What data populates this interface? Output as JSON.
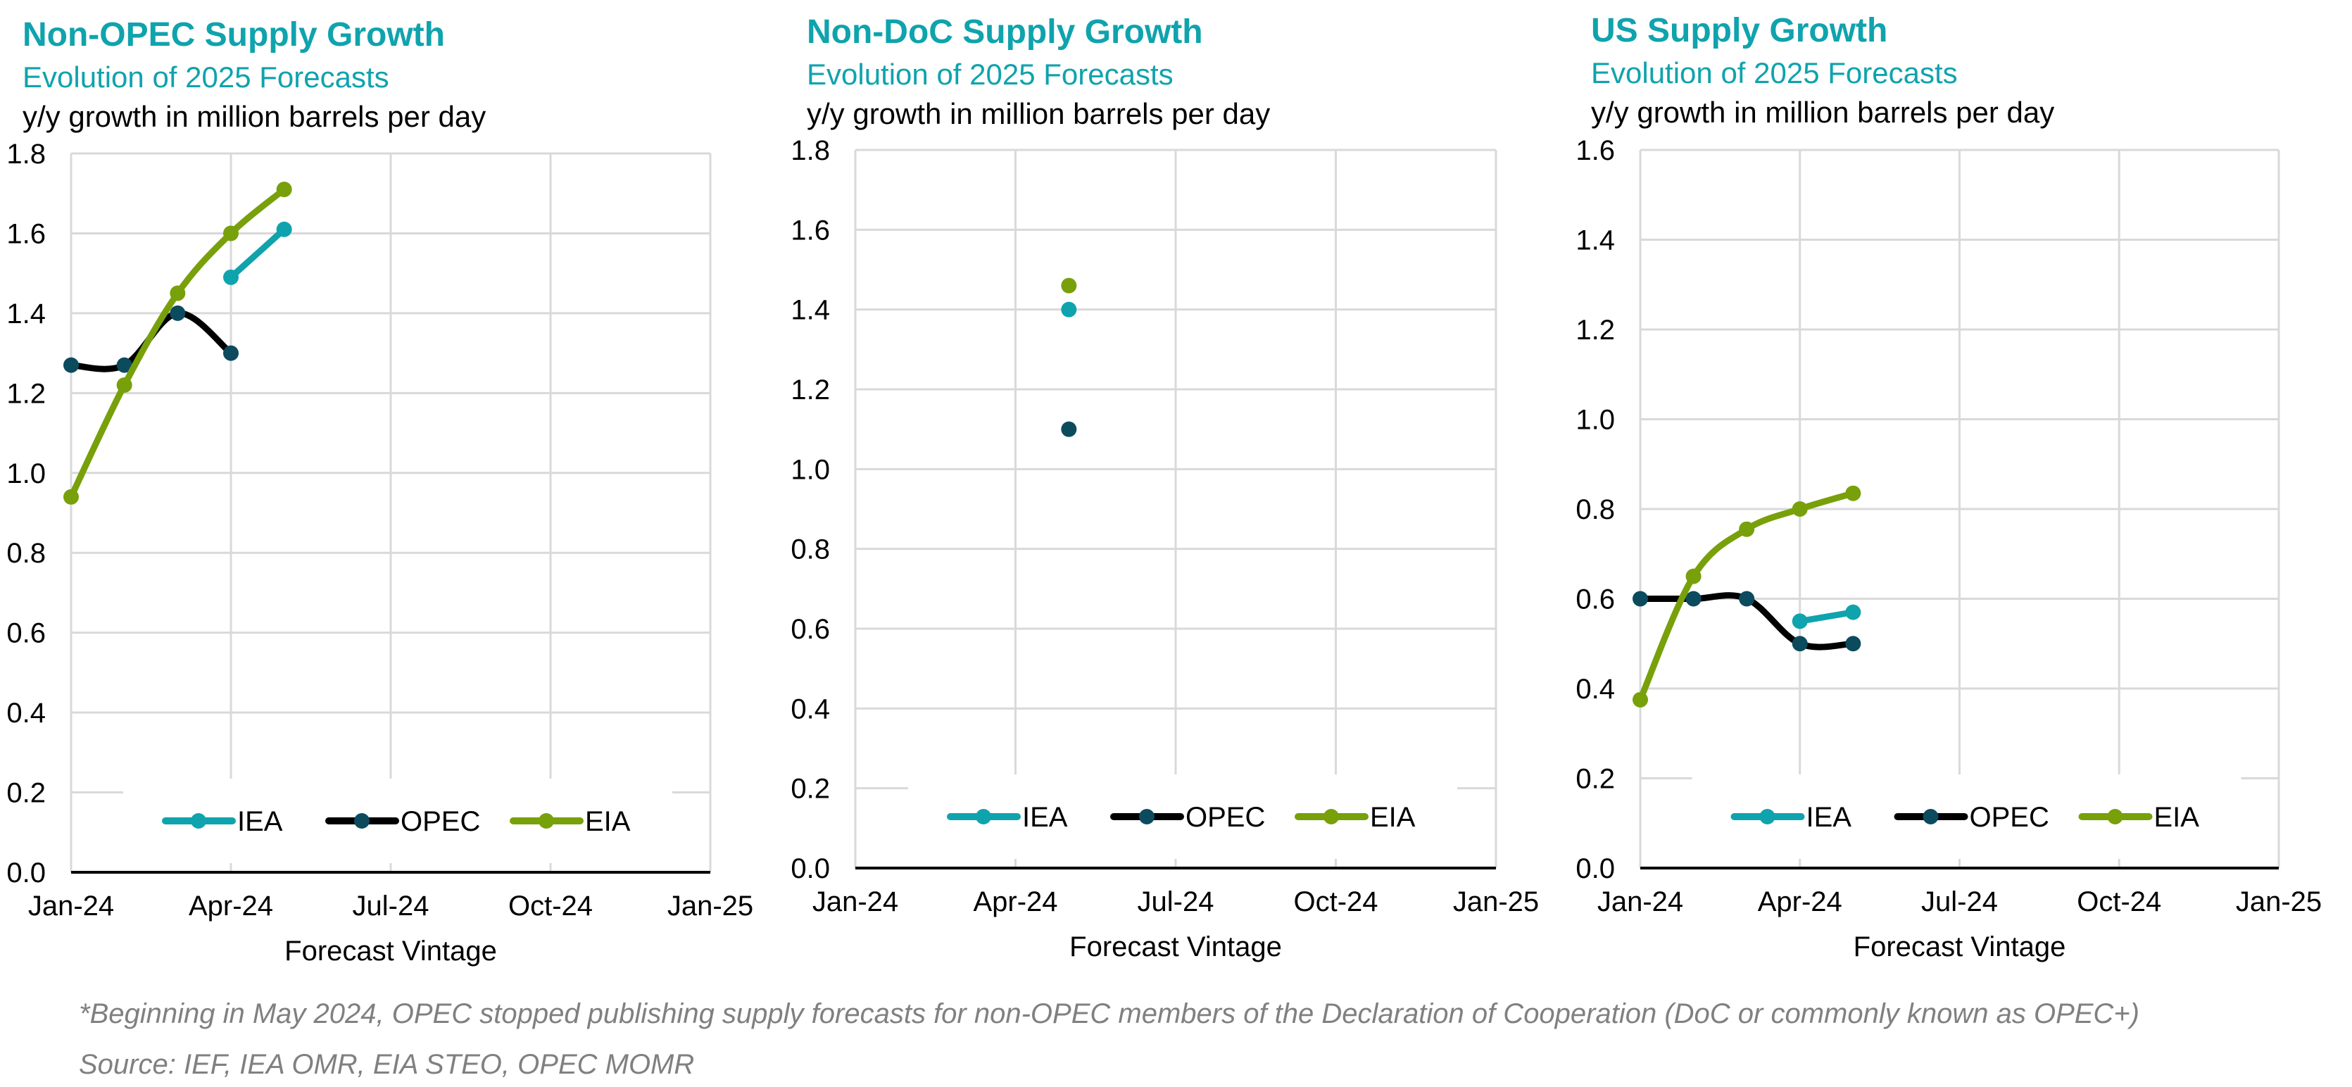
{
  "footnote": "*Beginning in May 2024, OPEC stopped publishing supply forecasts for non-OPEC members of the Declaration of Cooperation (DoC or commonly known as OPEC+)",
  "source": "Source: IEF, IEA OMR, EIA STEO, OPEC MOMR",
  "colors": {
    "IEA": "#0fa3ad",
    "OPEC_line": "#000000",
    "OPEC_marker": "#0c4a5e",
    "EIA": "#78a00a",
    "grid": "#d9d9d9",
    "axis": "#000000"
  },
  "chart_data": [
    {
      "type": "line",
      "title": "Non-OPEC Supply Growth",
      "subtitle": "Evolution of 2025 Forecasts",
      "ylabel": "y/y growth in million barrels per day",
      "xlabel": "Forecast Vintage",
      "x_ticks": [
        "Jan-24",
        "Apr-24",
        "Jul-24",
        "Oct-24",
        "Jan-25"
      ],
      "x_tick_months": [
        0,
        3,
        6,
        9,
        12
      ],
      "ylim": [
        0,
        1.8
      ],
      "y_ticks": [
        "0.0",
        "0.2",
        "0.4",
        "0.6",
        "0.8",
        "1.0",
        "1.2",
        "1.4",
        "1.6",
        "1.8"
      ],
      "grid": true,
      "legend": {
        "position": "bottom-center",
        "entries": [
          "IEA",
          "OPEC",
          "EIA"
        ]
      },
      "series": [
        {
          "name": "IEA",
          "x": [
            "Apr-24",
            "May-24"
          ],
          "x_months": [
            3,
            4
          ],
          "values": [
            1.49,
            1.61
          ]
        },
        {
          "name": "OPEC",
          "x": [
            "Jan-24",
            "Feb-24",
            "Mar-24",
            "Apr-24"
          ],
          "x_months": [
            0,
            1,
            2,
            3
          ],
          "values": [
            1.27,
            1.27,
            1.4,
            1.3
          ]
        },
        {
          "name": "EIA",
          "x": [
            "Jan-24",
            "Feb-24",
            "Mar-24",
            "Apr-24",
            "May-24"
          ],
          "x_months": [
            0,
            1,
            2,
            3,
            4
          ],
          "values": [
            0.94,
            1.22,
            1.45,
            1.6,
            1.71
          ]
        }
      ]
    },
    {
      "type": "scatter",
      "title": "Non-DoC Supply Growth",
      "subtitle": "Evolution of 2025 Forecasts",
      "ylabel": "y/y growth in million barrels per day",
      "xlabel": "Forecast Vintage",
      "x_ticks": [
        "Jan-24",
        "Apr-24",
        "Jul-24",
        "Oct-24",
        "Jan-25"
      ],
      "x_tick_months": [
        0,
        3,
        6,
        9,
        12
      ],
      "ylim": [
        0,
        1.8
      ],
      "y_ticks": [
        "0.0",
        "0.2",
        "0.4",
        "0.6",
        "0.8",
        "1.0",
        "1.2",
        "1.4",
        "1.6",
        "1.8"
      ],
      "grid": true,
      "legend": {
        "position": "bottom-center",
        "entries": [
          "IEA",
          "OPEC",
          "EIA"
        ]
      },
      "series": [
        {
          "name": "IEA",
          "x": [
            "May-24"
          ],
          "x_months": [
            4
          ],
          "values": [
            1.4
          ]
        },
        {
          "name": "OPEC",
          "x": [
            "May-24"
          ],
          "x_months": [
            4
          ],
          "values": [
            1.1
          ]
        },
        {
          "name": "EIA",
          "x": [
            "May-24"
          ],
          "x_months": [
            4
          ],
          "values": [
            1.46
          ]
        }
      ]
    },
    {
      "type": "line",
      "title": "US Supply Growth",
      "subtitle": "Evolution of 2025 Forecasts",
      "ylabel": "y/y growth in million barrels per day",
      "xlabel": "Forecast Vintage",
      "x_ticks": [
        "Jan-24",
        "Apr-24",
        "Jul-24",
        "Oct-24",
        "Jan-25"
      ],
      "x_tick_months": [
        0,
        3,
        6,
        9,
        12
      ],
      "ylim": [
        0,
        1.6
      ],
      "y_ticks": [
        "0.0",
        "0.2",
        "0.4",
        "0.6",
        "0.8",
        "1.0",
        "1.2",
        "1.4",
        "1.6"
      ],
      "grid": true,
      "legend": {
        "position": "bottom-center",
        "entries": [
          "IEA",
          "OPEC",
          "EIA"
        ]
      },
      "series": [
        {
          "name": "IEA",
          "x": [
            "Apr-24",
            "May-24"
          ],
          "x_months": [
            3,
            4
          ],
          "values": [
            0.55,
            0.57
          ]
        },
        {
          "name": "OPEC",
          "x": [
            "Jan-24",
            "Feb-24",
            "Mar-24",
            "Apr-24",
            "May-24"
          ],
          "x_months": [
            0,
            1,
            2,
            3,
            4
          ],
          "values": [
            0.6,
            0.6,
            0.6,
            0.5,
            0.5
          ]
        },
        {
          "name": "EIA",
          "x": [
            "Jan-24",
            "Feb-24",
            "Mar-24",
            "Apr-24",
            "May-24"
          ],
          "x_months": [
            0,
            1,
            2,
            3,
            4
          ],
          "values": [
            0.375,
            0.65,
            0.755,
            0.8,
            0.835
          ]
        }
      ]
    }
  ]
}
